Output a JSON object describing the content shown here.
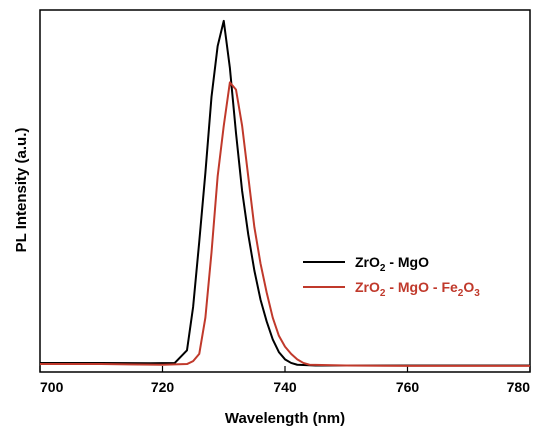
{
  "chart_data": {
    "type": "line",
    "title": "",
    "xlabel": "Wavelength (nm)",
    "ylabel": "PL Intensity (a.u.)",
    "xlim": [
      700,
      780
    ],
    "ylim": [
      0,
      1.0
    ],
    "xticks": [
      "700",
      "720",
      "740",
      "760",
      "780"
    ],
    "grid": false,
    "legend_position": "middle-right",
    "series": [
      {
        "name": "ZrO2 - MgO",
        "legend": {
          "a": "ZrO",
          "sub1": "2",
          "b": " - MgO"
        },
        "color": "#000000",
        "points": [
          [
            700,
            0.025
          ],
          [
            710,
            0.025
          ],
          [
            718,
            0.024
          ],
          [
            722,
            0.025
          ],
          [
            724,
            0.06
          ],
          [
            725,
            0.18
          ],
          [
            726,
            0.36
          ],
          [
            727,
            0.55
          ],
          [
            728,
            0.76
          ],
          [
            729,
            0.9
          ],
          [
            730,
            0.97
          ],
          [
            731,
            0.84
          ],
          [
            732,
            0.66
          ],
          [
            733,
            0.5
          ],
          [
            734,
            0.38
          ],
          [
            735,
            0.28
          ],
          [
            736,
            0.2
          ],
          [
            737,
            0.14
          ],
          [
            738,
            0.09
          ],
          [
            739,
            0.055
          ],
          [
            740,
            0.035
          ],
          [
            741,
            0.025
          ],
          [
            742,
            0.02
          ],
          [
            745,
            0.018
          ],
          [
            760,
            0.018
          ],
          [
            780,
            0.018
          ]
        ]
      },
      {
        "name": "ZrO2 - MgO - Fe2O3",
        "legend": {
          "a": "ZrO",
          "sub1": "2",
          "b": " - MgO - Fe",
          "sub2": "2",
          "c": "O",
          "sub3": "3"
        },
        "color": "#c0392b",
        "points": [
          [
            700,
            0.022
          ],
          [
            710,
            0.022
          ],
          [
            720,
            0.02
          ],
          [
            724,
            0.022
          ],
          [
            725,
            0.03
          ],
          [
            726,
            0.05
          ],
          [
            727,
            0.15
          ],
          [
            728,
            0.33
          ],
          [
            729,
            0.54
          ],
          [
            730,
            0.68
          ],
          [
            731,
            0.8
          ],
          [
            732,
            0.78
          ],
          [
            733,
            0.68
          ],
          [
            734,
            0.54
          ],
          [
            735,
            0.4
          ],
          [
            736,
            0.3
          ],
          [
            737,
            0.22
          ],
          [
            738,
            0.15
          ],
          [
            739,
            0.1
          ],
          [
            740,
            0.07
          ],
          [
            741,
            0.05
          ],
          [
            742,
            0.035
          ],
          [
            743,
            0.025
          ],
          [
            744,
            0.02
          ],
          [
            750,
            0.018
          ],
          [
            760,
            0.017
          ],
          [
            780,
            0.017
          ]
        ]
      }
    ]
  }
}
